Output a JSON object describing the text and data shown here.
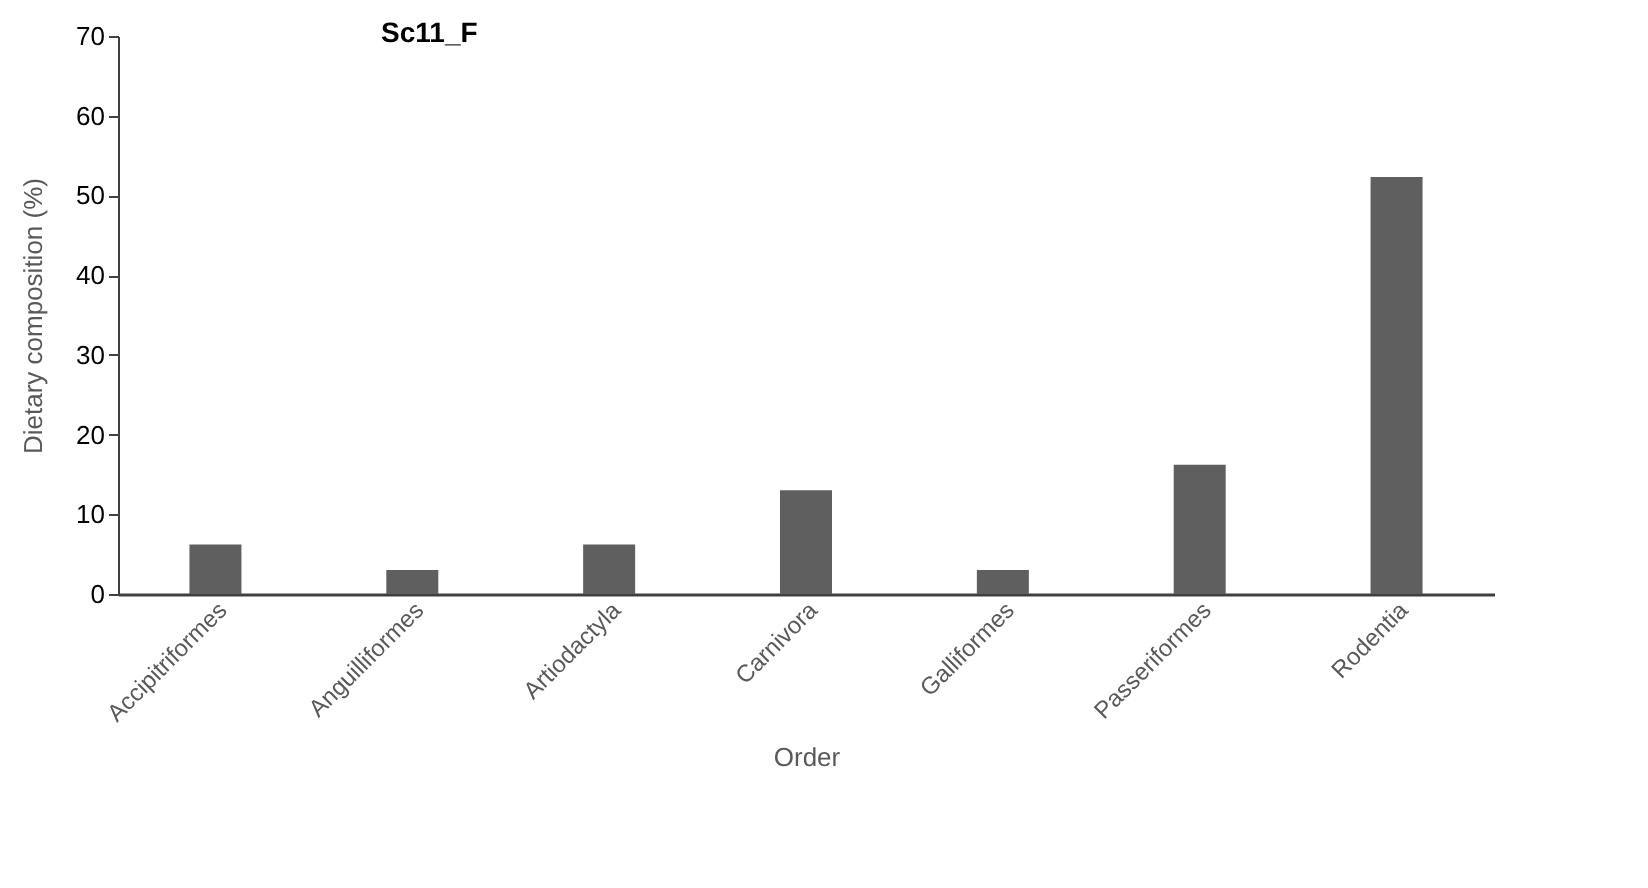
{
  "chart_data": {
    "type": "bar",
    "title": "Sc11_F",
    "xlabel": "Order",
    "ylabel": "Dietary composition (%)",
    "categories": [
      "Accipitriformes",
      "Anguilliformes",
      "Artiodactyla",
      "Carnivora",
      "Galliformes",
      "Passeriformes",
      "Rodentia"
    ],
    "values": [
      6.2,
      3.0,
      6.2,
      13.0,
      3.0,
      16.2,
      52.3
    ],
    "color": "#5f5f5f",
    "ylim": [
      0,
      70
    ],
    "yticks": [
      0,
      10,
      20,
      30,
      40,
      50,
      60,
      70
    ],
    "grid": false
  }
}
